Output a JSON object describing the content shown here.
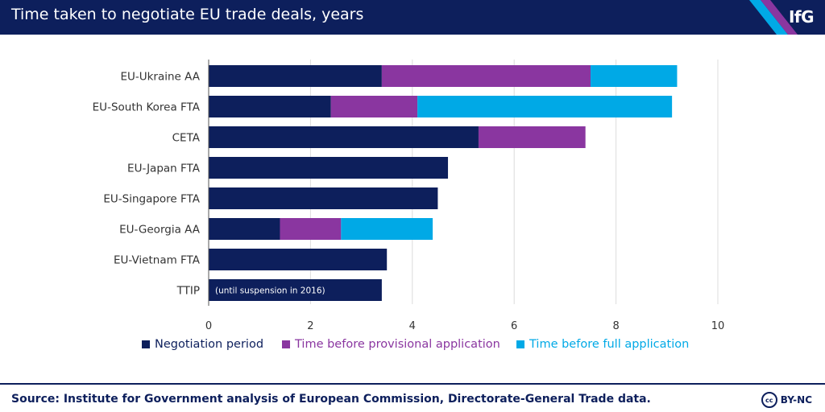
{
  "header": {
    "title": "Time taken to negotiate EU trade deals, years",
    "logo": "IfG"
  },
  "footer": {
    "source": "Source: Institute for Government analysis of European Commission, Directorate-General Trade data.",
    "license_icon_text": "cc",
    "license": "BY-NC"
  },
  "colors": {
    "navy": "#0d1f5c",
    "purple": "#8a36a0",
    "cyan": "#00a9e6",
    "grid": "#dcdcdc",
    "axis": "#555555",
    "label": "#333333"
  },
  "chart_data": {
    "type": "bar",
    "orientation": "horizontal",
    "stacked": true,
    "title": "Time taken to negotiate EU trade deals, years",
    "categories": [
      "EU-Ukraine AA",
      "EU-South Korea FTA",
      "CETA",
      "EU-Japan FTA",
      "EU-Singapore FTA",
      "EU-Georgia AA",
      "EU-Vietnam FTA",
      "TTIP"
    ],
    "series": [
      {
        "name": "Negotiation period",
        "color": "#0d1f5c",
        "values": [
          3.4,
          2.4,
          5.3,
          4.7,
          4.5,
          1.4,
          3.5,
          3.4
        ]
      },
      {
        "name": "Time before provisional application",
        "color": "#8a36a0",
        "values": [
          4.1,
          1.7,
          2.1,
          0,
          0,
          1.2,
          0,
          0
        ]
      },
      {
        "name": "Time before full application",
        "color": "#00a9e6",
        "values": [
          1.7,
          5.0,
          0,
          0,
          0,
          1.8,
          0,
          0
        ]
      }
    ],
    "xlim": [
      0,
      10
    ],
    "xticks": [
      "0",
      "2",
      "4",
      "6",
      "8",
      "10"
    ],
    "grid": true,
    "legend": "bottom",
    "annotations": [
      {
        "category": "TTIP",
        "text": "(until suspension in 2016)"
      }
    ]
  }
}
